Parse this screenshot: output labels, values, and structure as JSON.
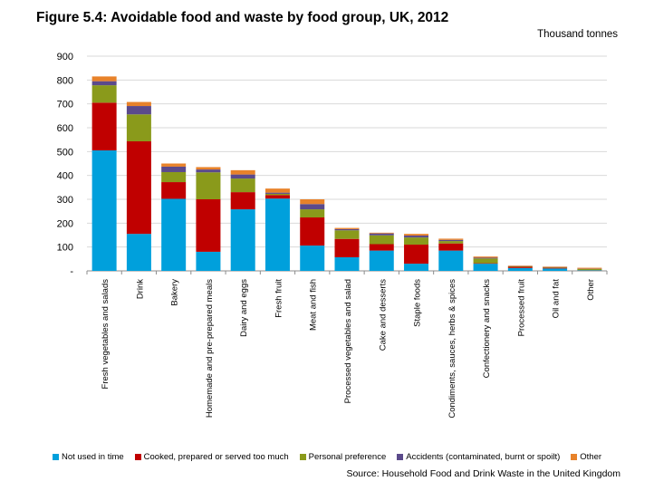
{
  "chart_data": {
    "type": "bar",
    "stacked": true,
    "title": "Figure 5.4: Avoidable food and waste by food group, UK, 2012",
    "unit": "Thousand tonnes",
    "source": "Source: Household Food and Drink Waste in the United Kingdom",
    "ylim": [
      0,
      900
    ],
    "yticks": [
      "-",
      "100",
      "200",
      "300",
      "400",
      "500",
      "600",
      "700",
      "800",
      "900"
    ],
    "grid": true,
    "legend_position": "bottom",
    "categories": [
      "Fresh vegetables and salads",
      "Drink",
      "Bakery",
      "Homemade and pre-prepared meals",
      "Dairy and eggs",
      "Fresh fruit",
      "Meat and fish",
      "Processed vegetables and salad",
      "Cake and desserts",
      "Staple foods",
      "Condiments, sauces, herbs & spices",
      "Confectionery and snacks",
      "Processed fruit",
      "Oil and fat",
      "Other"
    ],
    "series": [
      {
        "name": "Not used in time",
        "color": "#00a0dc",
        "values": [
          505,
          155,
          302,
          80,
          258,
          303,
          106,
          57,
          85,
          30,
          85,
          30,
          12,
          10,
          2
        ]
      },
      {
        "name": "Cooked, prepared or served too much",
        "color": "#c00000",
        "values": [
          200,
          388,
          70,
          220,
          72,
          15,
          118,
          77,
          27,
          80,
          30,
          2,
          5,
          3,
          1
        ]
      },
      {
        "name": "Personal preference",
        "color": "#8a9a1b",
        "values": [
          73,
          113,
          42,
          113,
          57,
          5,
          34,
          36,
          37,
          30,
          10,
          20,
          2,
          2,
          5
        ]
      },
      {
        "name": "Accidents (contaminated, burnt or spoilt)",
        "color": "#5b4a8b",
        "values": [
          17,
          35,
          23,
          12,
          17,
          5,
          22,
          5,
          8,
          8,
          5,
          3,
          1,
          1,
          1
        ]
      },
      {
        "name": "Other",
        "color": "#e8822a",
        "values": [
          20,
          17,
          13,
          10,
          18,
          17,
          20,
          5,
          3,
          7,
          5,
          5,
          2,
          2,
          4
        ]
      }
    ]
  }
}
